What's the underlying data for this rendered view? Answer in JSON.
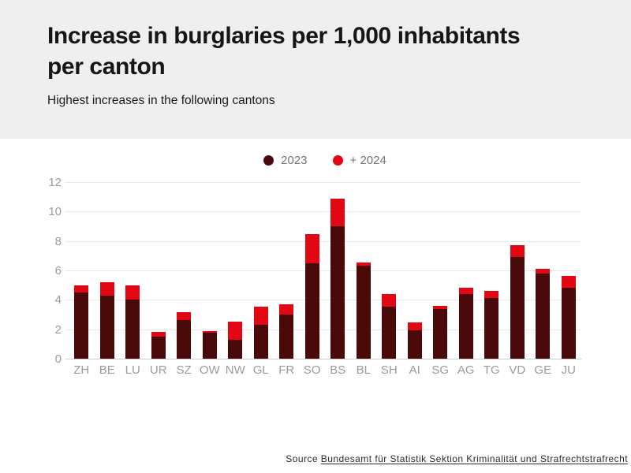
{
  "header": {
    "title": "Increase in burglaries per 1,000 inhabitants per canton",
    "subtitle": "Highest increases in the following cantons"
  },
  "legend": [
    {
      "label": "2023",
      "color": "#4a0a0a"
    },
    {
      "label": "+ 2024",
      "color": "#e30613"
    }
  ],
  "source": {
    "prefix": "Source",
    "link_text": "Bundesamt für Statistik Sektion Kriminalität und Strafrechtstrafrecht"
  },
  "colors": {
    "header_background": "#f0efef",
    "bar_2023": "#4a0a0a",
    "bar_2024": "#e30613",
    "gridline": "#e7e7e7",
    "axis_text": "#9b9b9b",
    "legend_text": "#757575"
  },
  "chart_data": {
    "type": "bar",
    "stacked": true,
    "title": "Increase in burglaries per 1,000 inhabitants per canton",
    "subtitle": "Highest increases in the following cantons",
    "categories": [
      "ZH",
      "BE",
      "LU",
      "UR",
      "SZ",
      "OW",
      "NW",
      "GL",
      "FR",
      "SO",
      "BS",
      "BL",
      "SH",
      "AI",
      "SG",
      "AG",
      "TG",
      "VD",
      "GE",
      "JU"
    ],
    "series": [
      {
        "name": "2023",
        "color": "#4a0a0a",
        "values": [
          4.5,
          4.3,
          4.0,
          1.5,
          2.65,
          1.75,
          1.3,
          2.3,
          3.0,
          6.5,
          9.0,
          6.3,
          3.55,
          1.95,
          3.35,
          4.4,
          4.1,
          6.9,
          5.8,
          4.8
        ]
      },
      {
        "name": "+ 2024",
        "color": "#e30613",
        "values": [
          0.5,
          0.9,
          1.0,
          0.3,
          0.5,
          0.1,
          1.2,
          1.25,
          0.7,
          1.95,
          1.85,
          0.25,
          0.85,
          0.5,
          0.25,
          0.4,
          0.5,
          0.8,
          0.3,
          0.8
        ]
      }
    ],
    "stacked_totals": [
      5.0,
      5.2,
      5.0,
      1.8,
      3.15,
      1.85,
      2.5,
      3.55,
      3.7,
      8.45,
      10.85,
      6.55,
      4.4,
      2.45,
      3.6,
      4.8,
      4.6,
      7.7,
      6.1,
      5.6
    ],
    "xlabel": "",
    "ylabel": "",
    "ylim": [
      0,
      12
    ],
    "yticks": [
      0,
      2,
      4,
      6,
      8,
      10,
      12
    ],
    "grid": true,
    "legend_position": "top-center"
  }
}
